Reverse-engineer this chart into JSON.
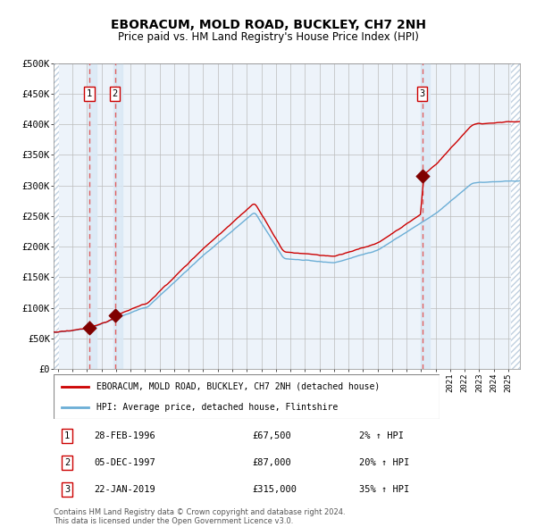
{
  "title": "EBORACUM, MOLD ROAD, BUCKLEY, CH7 2NH",
  "subtitle": "Price paid vs. HM Land Registry's House Price Index (HPI)",
  "ylim": [
    0,
    500000
  ],
  "yticks": [
    0,
    50000,
    100000,
    150000,
    200000,
    250000,
    300000,
    350000,
    400000,
    450000,
    500000
  ],
  "ytick_labels": [
    "£0",
    "£50K",
    "£100K",
    "£150K",
    "£200K",
    "£250K",
    "£300K",
    "£350K",
    "£400K",
    "£450K",
    "£500K"
  ],
  "xlim_start": 1993.7,
  "xlim_end": 2025.8,
  "sale_dates": [
    1996.16,
    1997.92,
    2019.07
  ],
  "sale_prices": [
    67500,
    87000,
    315000
  ],
  "sale_labels": [
    "1",
    "2",
    "3"
  ],
  "sale_label_dates": [
    "28-FEB-1996",
    "05-DEC-1997",
    "22-JAN-2019"
  ],
  "sale_price_labels": [
    "£67,500",
    "£87,000",
    "£315,000"
  ],
  "sale_hpi_labels": [
    "2% ↑ HPI",
    "20% ↑ HPI",
    "35% ↑ HPI"
  ],
  "hpi_line_color": "#6baed6",
  "price_line_color": "#cc0000",
  "sale_marker_color": "#800000",
  "dashed_line_color": "#e06060",
  "shade_color": "#d9e8f5",
  "grid_color": "#bbbbbb",
  "bg_color": "#ffffff",
  "plot_bg_color": "#edf3fa",
  "hatch_color": "#c0d0e0",
  "legend_line1": "EBORACUM, MOLD ROAD, BUCKLEY, CH7 2NH (detached house)",
  "legend_line2": "HPI: Average price, detached house, Flintshire",
  "footer1": "Contains HM Land Registry data © Crown copyright and database right 2024.",
  "footer2": "This data is licensed under the Open Government Licence v3.0."
}
